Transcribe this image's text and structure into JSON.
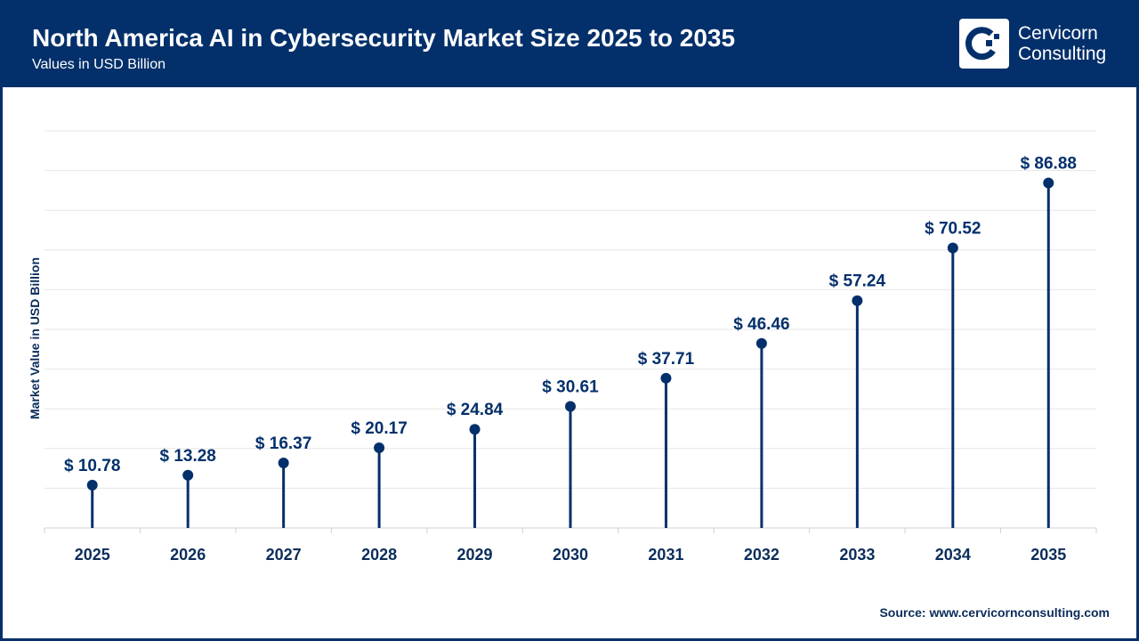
{
  "header": {
    "title": "North America AI in Cybersecurity Market Size 2025 to 2035",
    "subtitle": "Values in USD Billion"
  },
  "logo": {
    "line1": "Cervicorn",
    "line2": "Consulting"
  },
  "source": "Source: www.cervicornconsulting.com",
  "colors": {
    "primary": "#03306b",
    "grid": "#e6e6e6"
  },
  "chart_data": {
    "type": "lollipop",
    "categories": [
      "2025",
      "2026",
      "2027",
      "2028",
      "2029",
      "2030",
      "2031",
      "2032",
      "2033",
      "2034",
      "2035"
    ],
    "values": [
      10.78,
      13.28,
      16.37,
      20.17,
      24.84,
      30.61,
      37.71,
      46.46,
      57.24,
      70.52,
      86.88
    ],
    "data_labels": [
      "$ 10.78",
      "$ 13.28",
      "$ 16.37",
      "$ 20.17",
      "$ 24.84",
      "$ 30.61",
      "$ 37.71",
      "$ 46.46",
      "$ 57.24",
      "$ 70.52",
      "$ 86.88"
    ],
    "ylabel": "Market Value in USD Billion",
    "xlabel": "",
    "ylim": [
      0,
      100
    ],
    "grid": true,
    "legend": "none"
  }
}
